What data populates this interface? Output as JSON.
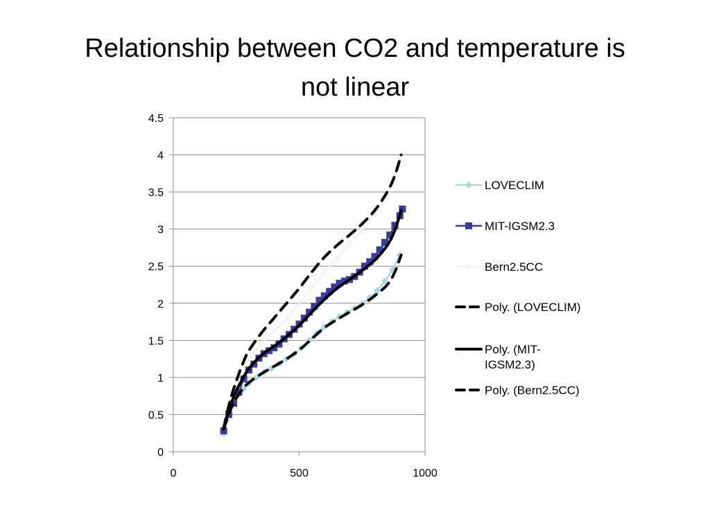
{
  "slide": {
    "title_line1": "Relationship between CO2 and temperature is",
    "title_line2": "not linear"
  },
  "chart_data": {
    "type": "line",
    "title": "",
    "xlabel": "",
    "ylabel": "",
    "xlim": [
      0,
      1000
    ],
    "ylim": [
      0,
      4.5
    ],
    "x_ticks": [
      "0",
      "500",
      "1000"
    ],
    "y_ticks": [
      "0",
      "0.5",
      "1",
      "1.5",
      "2",
      "2.5",
      "3",
      "3.5",
      "4",
      "4.5"
    ],
    "grid": "horizontal",
    "legend_position": "right",
    "series": [
      {
        "name": "LOVECLIM",
        "color": "#a9d9dd",
        "marker": "diamond",
        "style": "solid",
        "x": [
          200,
          210,
          220,
          240,
          260,
          280,
          300,
          330,
          360,
          390,
          420,
          450,
          480,
          510,
          540,
          570,
          600,
          630,
          660,
          690,
          720,
          750,
          780,
          810,
          840,
          870,
          900
        ],
        "y": [
          0.25,
          0.42,
          0.55,
          0.68,
          0.77,
          0.85,
          0.92,
          1.0,
          1.07,
          1.12,
          1.18,
          1.25,
          1.32,
          1.4,
          1.5,
          1.6,
          1.68,
          1.75,
          1.82,
          1.88,
          1.93,
          2.0,
          2.08,
          2.17,
          2.3,
          2.45,
          2.65
        ]
      },
      {
        "name": "MIT-IGSM2.3",
        "color": "#3b3c9b",
        "marker": "square",
        "style": "solid",
        "x": [
          200,
          220,
          240,
          260,
          280,
          300,
          320,
          340,
          360,
          380,
          400,
          420,
          440,
          460,
          480,
          500,
          520,
          540,
          560,
          580,
          600,
          620,
          640,
          660,
          680,
          700,
          720,
          740,
          760,
          780,
          800,
          820,
          840,
          860,
          880,
          900,
          910
        ],
        "y": [
          0.28,
          0.5,
          0.65,
          0.8,
          0.98,
          1.1,
          1.18,
          1.26,
          1.32,
          1.36,
          1.4,
          1.45,
          1.52,
          1.58,
          1.65,
          1.72,
          1.8,
          1.88,
          1.96,
          2.04,
          2.1,
          2.16,
          2.22,
          2.27,
          2.3,
          2.32,
          2.36,
          2.42,
          2.5,
          2.56,
          2.63,
          2.72,
          2.82,
          2.92,
          3.05,
          3.18,
          3.27
        ]
      },
      {
        "name": "Bern2.5CC",
        "color": "#f2f2f2",
        "marker": "star",
        "style": "solid",
        "x": [
          200,
          230,
          260,
          300,
          350,
          400,
          450,
          500,
          550,
          600,
          650,
          700,
          750,
          800,
          850,
          900
        ],
        "y": [
          0.3,
          0.62,
          0.9,
          1.25,
          1.45,
          1.62,
          1.8,
          2.0,
          2.2,
          2.42,
          2.6,
          2.8,
          2.98,
          3.2,
          3.45,
          3.95
        ]
      },
      {
        "name": "Poly. (LOVECLIM)",
        "color": "#000000",
        "marker": "none",
        "style": "dashed",
        "x": [
          200,
          225,
          250,
          275,
          300,
          350,
          400,
          450,
          500,
          550,
          600,
          650,
          700,
          750,
          800,
          850,
          880,
          905
        ],
        "y": [
          0.3,
          0.55,
          0.72,
          0.84,
          0.93,
          1.05,
          1.15,
          1.25,
          1.37,
          1.52,
          1.67,
          1.78,
          1.88,
          1.98,
          2.1,
          2.25,
          2.42,
          2.65
        ]
      },
      {
        "name": "Poly. (MIT-IGSM2.3)",
        "color": "#000000",
        "marker": "none",
        "style": "solid",
        "x": [
          200,
          225,
          250,
          275,
          300,
          350,
          400,
          450,
          500,
          550,
          600,
          650,
          700,
          750,
          800,
          850,
          880,
          905
        ],
        "y": [
          0.3,
          0.6,
          0.82,
          0.98,
          1.12,
          1.3,
          1.42,
          1.55,
          1.7,
          1.88,
          2.05,
          2.2,
          2.32,
          2.44,
          2.58,
          2.78,
          2.98,
          3.25
        ]
      },
      {
        "name": "Poly. (Bern2.5CC)",
        "color": "#000000",
        "marker": "none",
        "style": "dashed",
        "x": [
          200,
          225,
          250,
          275,
          300,
          350,
          400,
          450,
          500,
          550,
          600,
          650,
          700,
          750,
          800,
          850,
          880,
          905
        ],
        "y": [
          0.32,
          0.68,
          0.95,
          1.18,
          1.36,
          1.6,
          1.8,
          2.0,
          2.2,
          2.42,
          2.62,
          2.78,
          2.92,
          3.07,
          3.25,
          3.5,
          3.72,
          4.0
        ]
      }
    ]
  }
}
